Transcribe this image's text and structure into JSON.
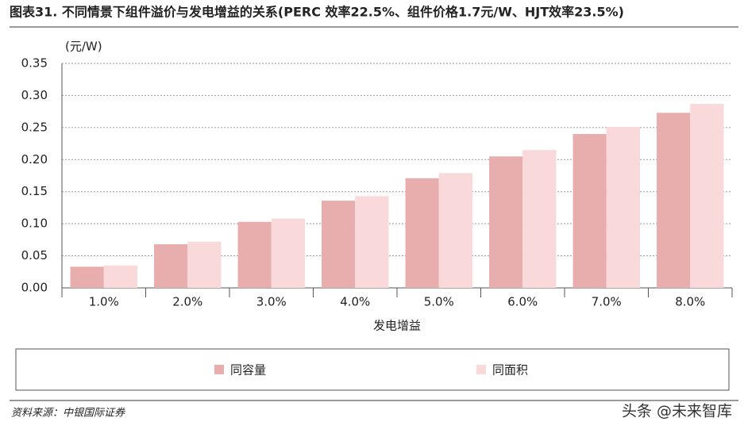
{
  "chart_data": {
    "type": "bar",
    "title": "图表31. 不同情景下组件溢价与发电增益的关系(PERC 效率22.5%、组件价格1.7元/W、HJT效率23.5%)",
    "y_unit": "(元/W)",
    "x_label": "发电增益",
    "categories": [
      "1.0%",
      "2.0%",
      "3.0%",
      "4.0%",
      "5.0%",
      "6.0%",
      "7.0%",
      "8.0%"
    ],
    "series": [
      {
        "name": "同容量",
        "color": "#e8adad",
        "values": [
          0.033,
          0.068,
          0.103,
          0.136,
          0.171,
          0.205,
          0.24,
          0.273
        ]
      },
      {
        "name": "同面积",
        "color": "#f9d9d9",
        "values": [
          0.035,
          0.072,
          0.108,
          0.143,
          0.179,
          0.215,
          0.251,
          0.287
        ]
      }
    ],
    "ylim": [
      0,
      0.35
    ],
    "yticks": [
      {
        "value": 0,
        "label": "0.00"
      },
      {
        "value": 0.05,
        "label": "0.05"
      },
      {
        "value": 0.1,
        "label": "0.10"
      },
      {
        "value": 0.15,
        "label": "0.15"
      },
      {
        "value": 0.2,
        "label": "0.20"
      },
      {
        "value": 0.25,
        "label": "0.25"
      },
      {
        "value": 0.3,
        "label": "0.30"
      },
      {
        "value": 0.35,
        "label": "0.35"
      }
    ],
    "grid": true,
    "source": "资料来源：中银国际证券",
    "watermark": "头条 @未来智库"
  }
}
